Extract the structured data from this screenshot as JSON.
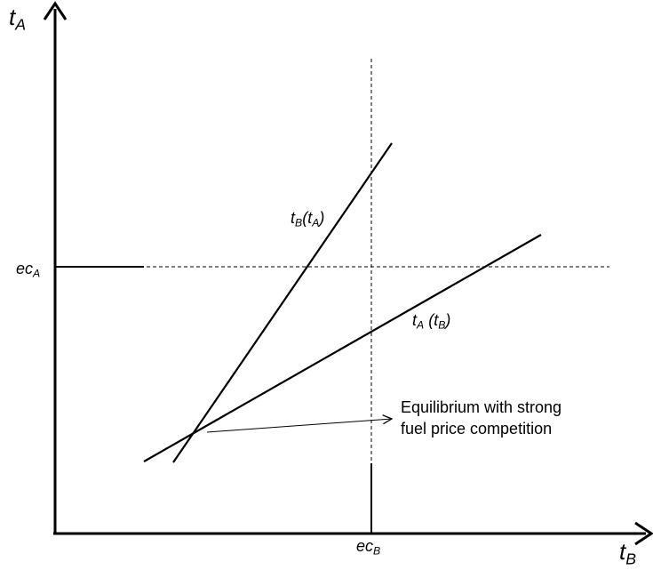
{
  "axes": {
    "y_label": {
      "main": "t",
      "sub": "A"
    },
    "x_label": {
      "main": "t",
      "sub": "B"
    }
  },
  "reference_levels": {
    "ec_A": {
      "main": "ec",
      "sub": "A"
    },
    "ec_B": {
      "main": "ec",
      "sub": "B"
    }
  },
  "curves": {
    "tB_of_tA": {
      "main": "t",
      "sub": "B",
      "paren_main": "t",
      "paren_sub": "A"
    },
    "tA_of_tB": {
      "main": "t",
      "sub": "A",
      "paren_main": "t",
      "paren_sub": "B"
    }
  },
  "annotation": {
    "line1": "Equilibrium with strong",
    "line2": "fuel price competition"
  },
  "colors": {
    "ink": "#000000",
    "background": "#ffffff"
  }
}
